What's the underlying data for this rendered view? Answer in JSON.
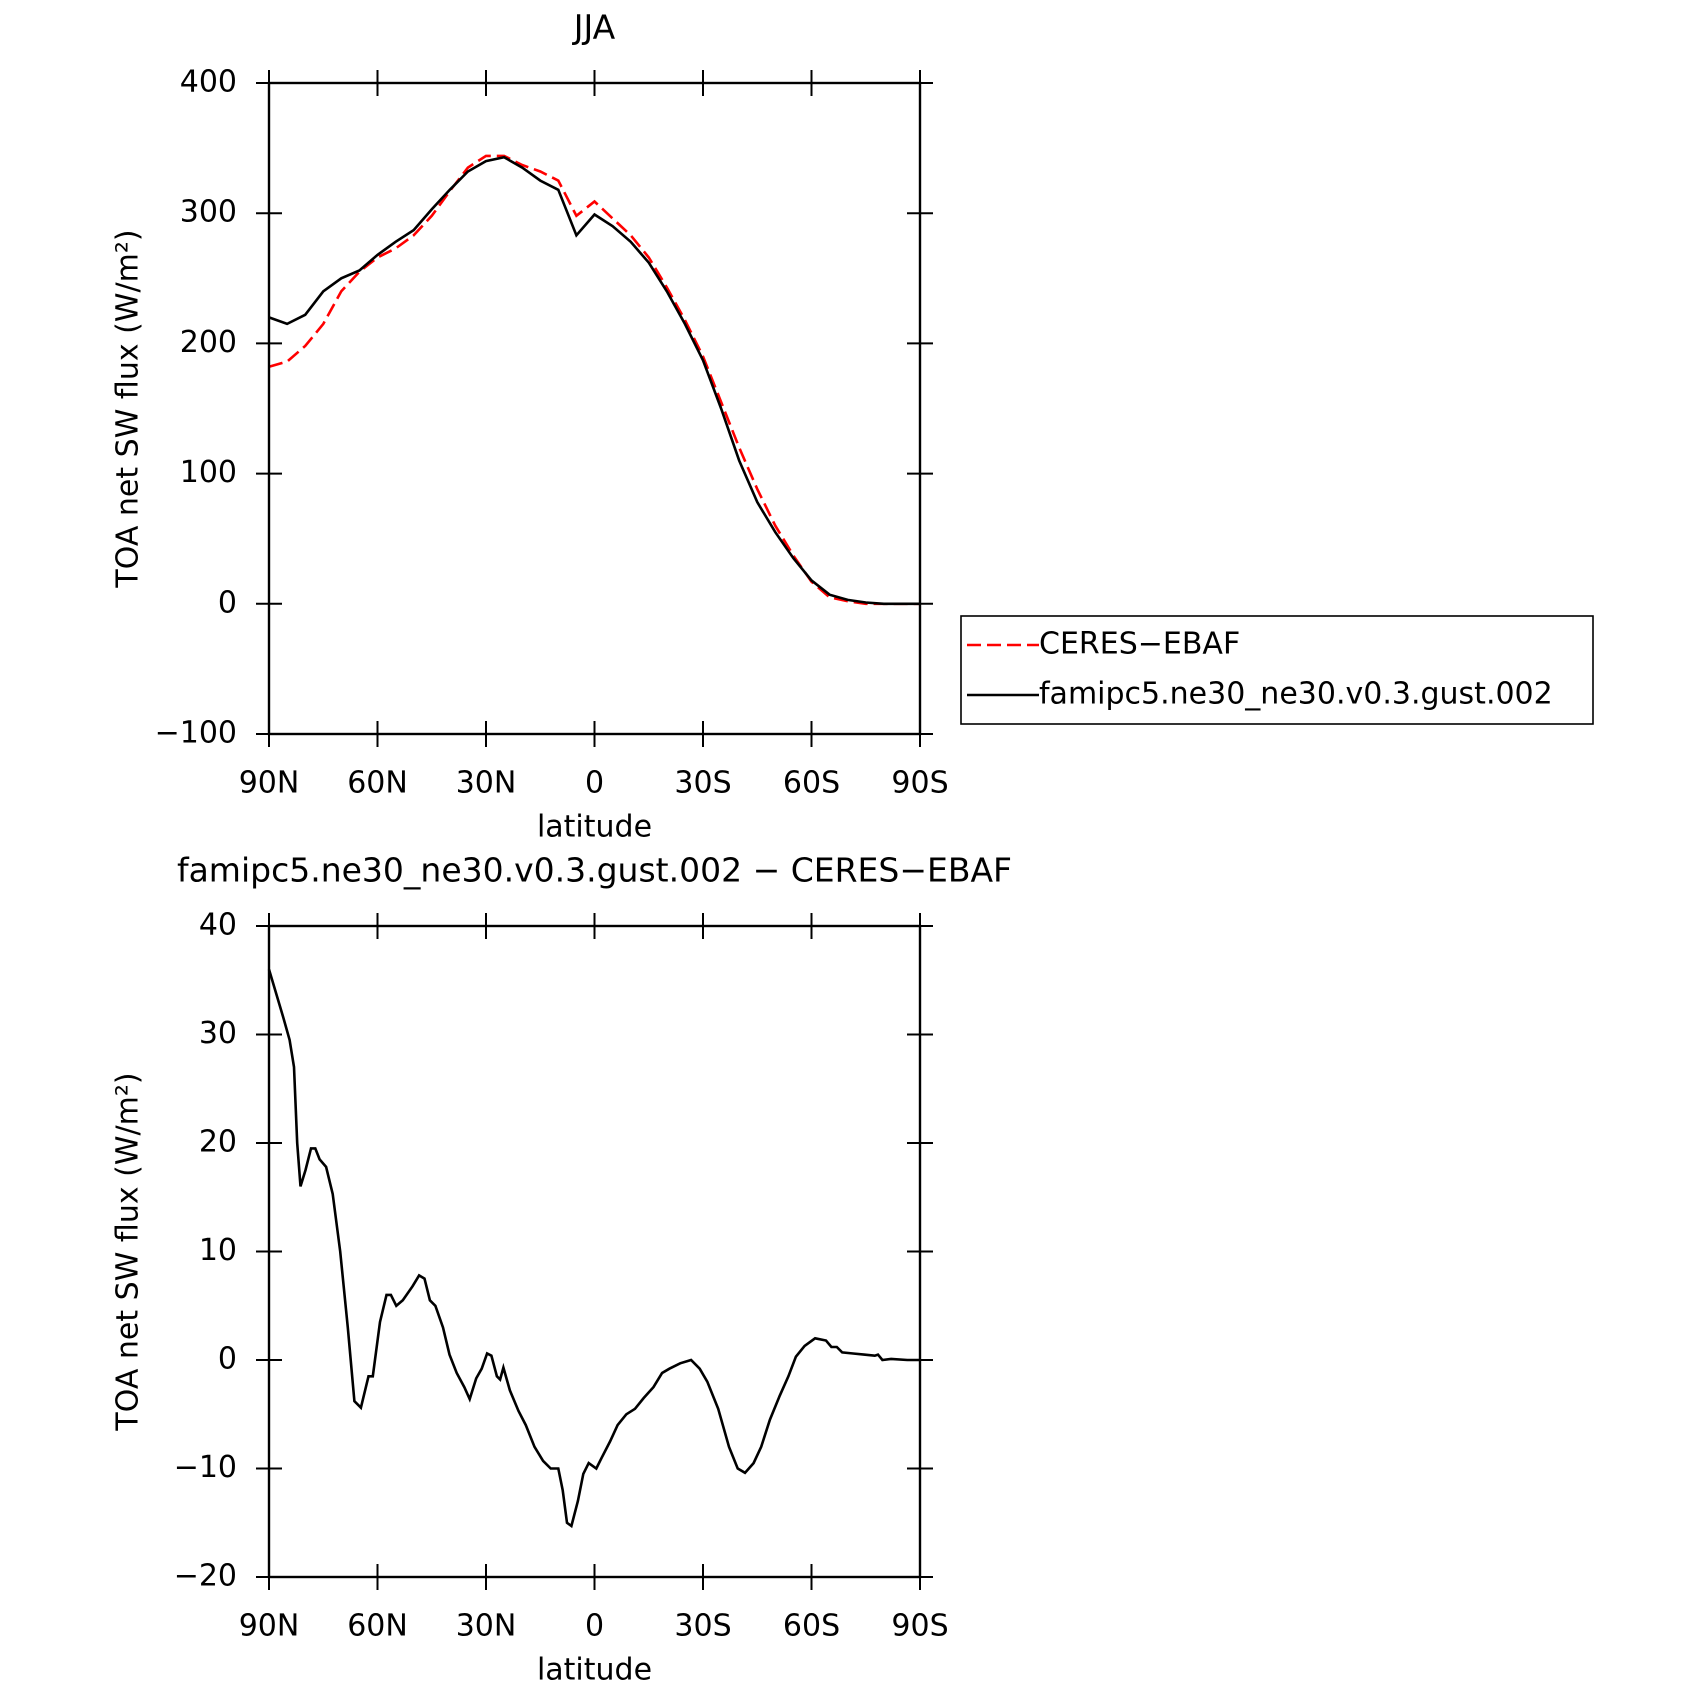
{
  "chart_data": [
    {
      "type": "line",
      "title": "JJA",
      "xlabel": "latitude",
      "ylabel": "TOA net SW flux (W/m²)",
      "x": [
        90,
        85,
        80,
        75,
        70,
        65,
        60,
        55,
        50,
        45,
        40,
        35,
        30,
        25,
        20,
        15,
        10,
        5,
        0,
        -5,
        -10,
        -15,
        -20,
        -25,
        -30,
        -35,
        -40,
        -45,
        -50,
        -55,
        -60,
        -65,
        -70,
        -75,
        -80,
        -85,
        -90
      ],
      "series": [
        {
          "name": "CERES−EBAF",
          "color": "#ff0000",
          "dash": true,
          "values": [
            182,
            186,
            198,
            215,
            240,
            255,
            266,
            273,
            283,
            298,
            317,
            335,
            344,
            344,
            337,
            332,
            325,
            298,
            309,
            296,
            283,
            266,
            243,
            218,
            190,
            155,
            120,
            88,
            60,
            37,
            17,
            5,
            2,
            0,
            0,
            0,
            0
          ]
        },
        {
          "name": "famipc5.ne30_ne30.v0.3.gust.002",
          "color": "#000000",
          "dash": false,
          "values": [
            220,
            215,
            222,
            240,
            250,
            256,
            268,
            278,
            287,
            303,
            318,
            332,
            340,
            343,
            335,
            325,
            318,
            283,
            299,
            290,
            278,
            262,
            240,
            215,
            187,
            150,
            110,
            78,
            55,
            35,
            18,
            7,
            3,
            1,
            0,
            0,
            0
          ]
        }
      ],
      "xlim": [
        90,
        -90
      ],
      "xticks": [
        {
          "value": 90,
          "label": "90N"
        },
        {
          "value": 60,
          "label": "60N"
        },
        {
          "value": 30,
          "label": "30N"
        },
        0,
        {
          "value": -30,
          "label": "30S"
        },
        {
          "value": -60,
          "label": "60S"
        },
        {
          "value": -90,
          "label": "90S"
        }
      ],
      "ylim": [
        -100,
        400
      ],
      "yticks": [
        {
          "value": -100,
          "label": "−100"
        },
        0,
        100,
        200,
        300,
        400
      ],
      "legend": "right"
    },
    {
      "type": "line",
      "title": "famipc5.ne30_ne30.v0.3.gust.002 − CERES−EBAF",
      "xlabel": "latitude",
      "ylabel": "TOA net SW flux (W/m²)",
      "x": [
        90,
        86,
        84.3,
        83.1,
        82.2,
        81.3,
        79.9,
        78.4,
        77.2,
        76,
        74.2,
        72.4,
        70.3,
        68.2,
        66.4,
        64.6,
        62.5,
        61.3,
        59.3,
        57.5,
        56.3,
        54.8,
        53,
        50.3,
        48.5,
        47,
        45.5,
        44,
        41.9,
        40.1,
        38.1,
        36,
        34.5,
        32.7,
        31.2,
        29.7,
        28.5,
        27,
        26.1,
        25.2,
        23.4,
        21,
        19,
        16.6,
        14.2,
        12.1,
        10,
        8.8,
        7.6,
        6.4,
        4.6,
        3.1,
        1.6,
        -0.5,
        -2,
        -4.3,
        -6.4,
        -8.8,
        -11.2,
        -13.6,
        -16.3,
        -18.7,
        -20.7,
        -23.7,
        -26.7,
        -29.1,
        -31.2,
        -34.2,
        -37.2,
        -39.6,
        -41.6,
        -44,
        -46.1,
        -48.5,
        -51.2,
        -53.6,
        -55.7,
        -58.1,
        -61,
        -64,
        -65.5,
        -67,
        -68.5,
        -71.5,
        -74.5,
        -77.5,
        -78.4,
        -79.6,
        -82,
        -86.5,
        -90
      ],
      "series": [
        {
          "color": "#000000",
          "dash": false,
          "values": [
            36,
            31.5,
            29.5,
            27,
            20,
            16,
            17.5,
            19.5,
            19.5,
            18.5,
            17.8,
            15.3,
            10,
            3,
            -3.8,
            -4.4,
            -1.5,
            -1.5,
            3.5,
            6,
            6,
            5,
            5.5,
            6.8,
            7.8,
            7.5,
            5.5,
            5,
            3,
            0.5,
            -1.2,
            -2.5,
            -3.6,
            -1.7,
            -0.8,
            0.6,
            0.4,
            -1.5,
            -1.8,
            -0.7,
            -2.8,
            -4.7,
            -6,
            -8,
            -9.3,
            -10,
            -10,
            -12,
            -15,
            -15.3,
            -13,
            -10.5,
            -9.5,
            -10,
            -9,
            -7.5,
            -6,
            -5,
            -4.5,
            -3.5,
            -2.5,
            -1.2,
            -0.8,
            -0.3,
            0,
            -0.8,
            -2,
            -4.5,
            -8,
            -10,
            -10.4,
            -9.5,
            -8,
            -5.5,
            -3.3,
            -1.5,
            0.3,
            1.3,
            2,
            1.8,
            1.2,
            1.2,
            0.7,
            0.6,
            0.5,
            0.4,
            0.5,
            0,
            0.1,
            0,
            0
          ]
        }
      ],
      "xlim": [
        90,
        -90
      ],
      "xticks": [
        {
          "value": 90,
          "label": "90N"
        },
        {
          "value": 60,
          "label": "60N"
        },
        {
          "value": 30,
          "label": "30N"
        },
        0,
        {
          "value": -30,
          "label": "30S"
        },
        {
          "value": -60,
          "label": "60S"
        },
        {
          "value": -90,
          "label": "90S"
        }
      ],
      "ylim": [
        -20,
        40
      ],
      "yticks": [
        {
          "value": -20,
          "label": "−20"
        },
        {
          "value": -10,
          "label": "−10"
        },
        0,
        10,
        20,
        30,
        40
      ]
    }
  ]
}
